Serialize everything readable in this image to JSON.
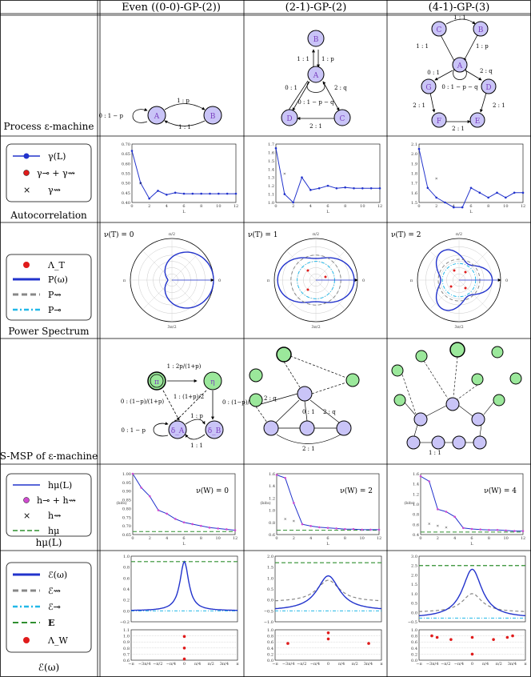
{
  "headers": [
    "Even ((0-0)-GP-(2))",
    "(2-1)-GP-(2)",
    "(4-1)-GP-(3)"
  ],
  "row_labels": {
    "process": "Process ε-machine",
    "autocorr": "Autocorrelation",
    "power": "Power Spectrum",
    "msp": "S-MSP of ε-machine",
    "entropy": "hμ(L)",
    "excess": "ℰ(ω)"
  },
  "legends": {
    "autocorr": [
      "γ(L)",
      "γ⊸ + γ⇝",
      "γ⇝"
    ],
    "power": [
      "Λ_T",
      "P(ω)",
      "P⇝",
      "P⊸"
    ],
    "entropy": [
      "hμ(L)",
      "h⊸ + h⇝",
      "h⇝",
      "hμ"
    ],
    "excess": [
      "ℰ(ω)",
      "ℰ⇝",
      "ℰ⊸",
      "E",
      "Λ_W"
    ]
  },
  "colors": {
    "line": "#2233cc",
    "dot": "#e01b1b",
    "gray": "#888888",
    "cyan": "#22b8e8",
    "green": "#2f8f2f",
    "node": "#c9c4f7",
    "nodeGreen": "#9be89b"
  },
  "process": {
    "even": {
      "nodes": [
        "A",
        "B"
      ],
      "edges": [
        "1 : p",
        "1 : 1",
        "0 : 1 − p"
      ]
    },
    "gp21": {
      "nodes": [
        "A",
        "B",
        "C",
        "D"
      ],
      "edges": [
        "1 : 1",
        "1 : p",
        "0 : 1",
        "2 : q",
        "0 : 1 − p − q",
        "2 : 1"
      ]
    },
    "gp41": {
      "nodes": [
        "A",
        "B",
        "C",
        "D",
        "E",
        "F",
        "G"
      ],
      "edges": [
        "1 : 1",
        "1 : 1",
        "1 : p",
        "0 : 1",
        "2 : q",
        "0 : 1 − p − q",
        "2 : 1",
        "2 : 1",
        "2 : 1"
      ]
    }
  },
  "autocorr": {
    "xlabel": "L",
    "xticks": [
      "0",
      "2",
      "4",
      "6",
      "8",
      "10",
      "12"
    ],
    "even_yticks": [
      "0.40",
      "0.45",
      "0.50",
      "0.55",
      "0.60",
      "0.65",
      "0.70"
    ],
    "gp21_yticks": [
      "1.0",
      "1.1",
      "1.2",
      "1.3",
      "1.4",
      "1.5",
      "1.6",
      "1.7"
    ],
    "gp41_yticks": [
      "1.5",
      "1.6",
      "1.7",
      "1.8",
      "1.9",
      "2.0",
      "2.1"
    ]
  },
  "power": {
    "nu": [
      "ν(T) = 0",
      "ν(T) = 1",
      "ν(T) = 2"
    ],
    "angle_labels": [
      "0",
      "π/2",
      "π",
      "3π/2",
      "π/4",
      "3π/4",
      "5π/4",
      "7π/4"
    ]
  },
  "msp": {
    "even_edges": [
      "1 : 2p/(1+p)",
      "0 : (1−p)/(1+p)",
      "1 : (1+p)/2",
      "0 : (1−p)/2",
      "1 : p",
      "1 : 1",
      "0 : 1 − p"
    ],
    "even_nodes": [
      "π",
      "η",
      "δ_A",
      "δ_B"
    ]
  },
  "entropy": {
    "ylabel": "(bits)",
    "xlabel": "L",
    "xticks": [
      "0",
      "2",
      "4",
      "6",
      "8",
      "10",
      "12"
    ],
    "nu": [
      "ν(W) = 0",
      "ν(W) = 2",
      "ν(W) = 4"
    ],
    "even_yticks": [
      "0.65",
      "0.70",
      "0.75",
      "0.80",
      "0.85",
      "0.90",
      "0.95",
      "1.00"
    ],
    "gp21_yticks": [
      "0.6",
      "0.8",
      "1.0",
      "1.2",
      "1.4",
      "1.6"
    ],
    "gp41_yticks": [
      "0.4",
      "0.6",
      "0.8",
      "1.0",
      "1.2",
      "1.4",
      "1.6"
    ]
  },
  "excess": {
    "even_yticks": [
      "−0.2",
      "0.0",
      "0.2",
      "0.4",
      "0.6",
      "0.8",
      "1.0"
    ],
    "gp21_yticks": [
      "−1.0",
      "−0.5",
      "0.0",
      "0.5",
      "1.0",
      "1.5",
      "2.0"
    ],
    "gp41_yticks": [
      "−0.5",
      "0.0",
      "0.5",
      "1.0",
      "1.5",
      "2.0",
      "2.5",
      "3.0"
    ],
    "lower_yticks": [
      "0.0",
      "0.2",
      "0.4",
      "0.6",
      "0.8",
      "1.0"
    ],
    "lower_yticks_even": [
      "0.6",
      "0.7",
      "0.8",
      "0.9",
      "1.0",
      "1.1"
    ],
    "xticks": [
      "−π",
      "−3π/4",
      "−π/2",
      "−π/4",
      "0",
      "π/4",
      "π/2",
      "3π/4",
      "π"
    ]
  }
}
